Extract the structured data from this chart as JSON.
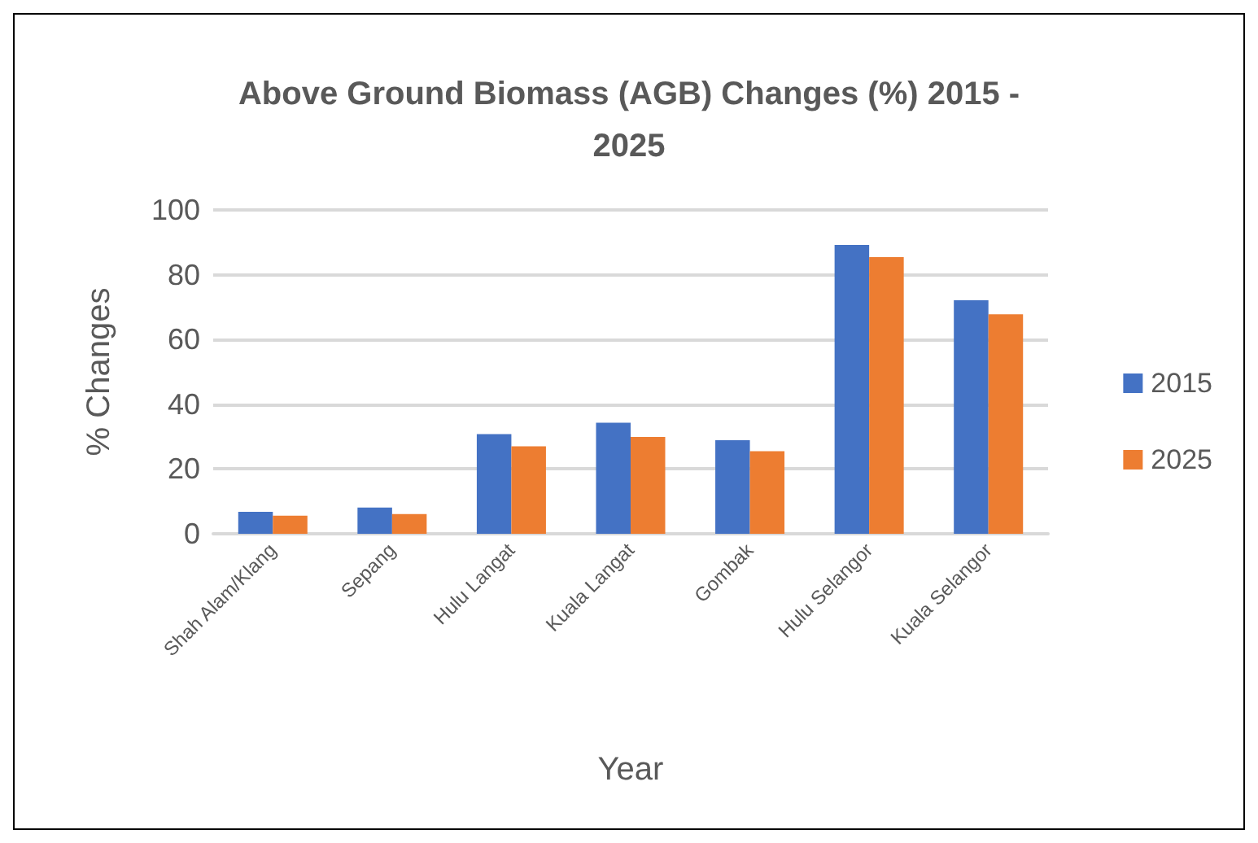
{
  "chart_data": {
    "type": "bar",
    "title": "Above Ground Biomass (AGB) Changes (%) 2015 -\n2025",
    "xlabel": "Year",
    "ylabel": "% Changes",
    "categories": [
      "Shah Alam/Klang",
      "Sepang",
      "Hulu Langat",
      "Kuala Langat",
      "Gombak",
      "Hulu Selangor",
      "Kuala Selangor"
    ],
    "series": [
      {
        "name": "2015",
        "color": "#4472c4",
        "values": [
          6.8,
          8.1,
          30.8,
          34.3,
          28.9,
          89.2,
          72.1
        ]
      },
      {
        "name": "2025",
        "color": "#ed7d31",
        "values": [
          5.6,
          6.1,
          27.0,
          29.9,
          25.5,
          85.4,
          67.8
        ]
      }
    ],
    "ylim": [
      0,
      100
    ],
    "yticks": [
      0,
      20,
      40,
      60,
      80,
      100
    ],
    "grid": "y",
    "legend": "right"
  }
}
